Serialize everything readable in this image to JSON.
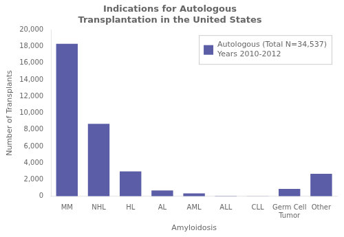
{
  "chart_data": {
    "type": "bar",
    "title": "Indications for Autologous\nTransplantation in the United States",
    "xlabel": "Amyloidosis",
    "ylabel": "Number of Transplants",
    "categories": [
      "MM",
      "NHL",
      "HL",
      "AL",
      "AML",
      "ALL",
      "CLL",
      "Germ Cell\nTumor",
      "Other"
    ],
    "series": [
      {
        "name": "Autologous (Total N=34,537)\nYears 2010-2012",
        "color": "#5b5ea6",
        "values": [
          18300,
          8700,
          3000,
          700,
          350,
          50,
          30,
          900,
          2700
        ]
      }
    ],
    "ylim": [
      0,
      20000
    ],
    "yticks": [
      0,
      {
        "value": 2000,
        "label": "2,000"
      },
      {
        "value": 4000,
        "label": "4,000"
      },
      {
        "value": 6000,
        "label": "6,000"
      },
      {
        "value": 8000,
        "label": "8,000"
      },
      {
        "value": 10000,
        "label": "10,000"
      },
      {
        "value": 12000,
        "label": "12,000"
      },
      {
        "value": 14000,
        "label": "14,000"
      },
      {
        "value": 16000,
        "label": "16,000"
      },
      {
        "value": 18000,
        "label": "18,000"
      },
      {
        "value": 20000,
        "label": "20,000"
      }
    ],
    "grid": false,
    "legend": "upper right"
  }
}
